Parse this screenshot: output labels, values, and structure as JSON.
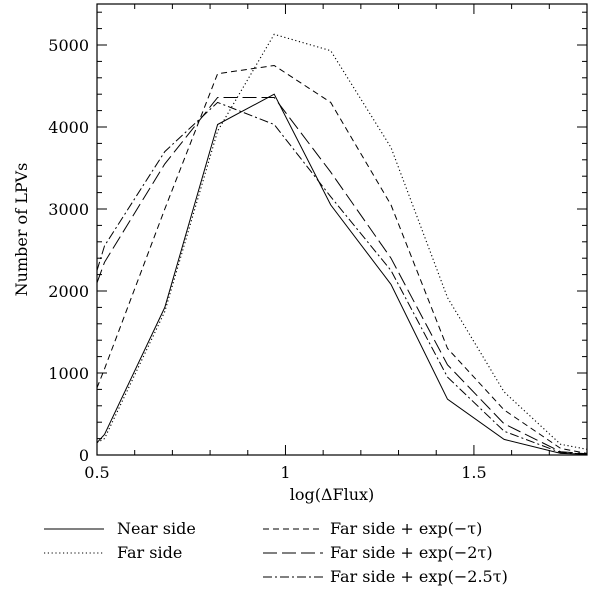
{
  "chart_data": {
    "type": "line",
    "xlabel": "log(ΔFlux)",
    "ylabel": "Number of LPVs",
    "xlim": [
      0.5,
      1.8
    ],
    "ylim": [
      0,
      5500
    ],
    "x_ticks": [
      0.5,
      1,
      1.5
    ],
    "y_ticks": [
      0,
      1000,
      2000,
      3000,
      4000,
      5000
    ],
    "x_tick_labels": [
      "0.5",
      "1",
      "1.5"
    ],
    "y_tick_labels": [
      "0",
      "1000",
      "2000",
      "3000",
      "4000",
      "5000"
    ],
    "grid": false,
    "legend_placement": "bottom (below plot, two columns)",
    "series": [
      {
        "name": "Near side",
        "style": "solid",
        "x": [
          0.5,
          0.52,
          0.68,
          0.82,
          0.97,
          1.12,
          1.28,
          1.43,
          1.58,
          1.73,
          1.8
        ],
        "y": [
          150,
          250,
          1800,
          4030,
          4400,
          3050,
          2080,
          680,
          190,
          20,
          10
        ]
      },
      {
        "name": "Far side",
        "style": "dotted",
        "x": [
          0.5,
          0.52,
          0.68,
          0.82,
          0.97,
          1.12,
          1.28,
          1.43,
          1.58,
          1.73,
          1.8
        ],
        "y": [
          150,
          200,
          1750,
          3950,
          5130,
          4930,
          3750,
          1920,
          770,
          130,
          70
        ]
      },
      {
        "name": "Far side + exp(−τ)",
        "style": "short-dash",
        "x": [
          0.5,
          0.52,
          0.68,
          0.82,
          0.97,
          1.12,
          1.28,
          1.43,
          1.58,
          1.73,
          1.8
        ],
        "y": [
          820,
          1050,
          3000,
          4650,
          4750,
          4300,
          3050,
          1300,
          550,
          80,
          20
        ]
      },
      {
        "name": "Far side + exp(−2τ)",
        "style": "long-dash",
        "x": [
          0.5,
          0.52,
          0.68,
          0.82,
          0.97,
          1.12,
          1.28,
          1.43,
          1.58,
          1.73,
          1.8
        ],
        "y": [
          2100,
          2350,
          3550,
          4360,
          4360,
          3450,
          2400,
          1100,
          380,
          40,
          15
        ]
      },
      {
        "name": "Far side + exp(−2.5τ)",
        "style": "dash-dot",
        "x": [
          0.5,
          0.52,
          0.68,
          0.82,
          0.97,
          1.12,
          1.28,
          1.43,
          1.58,
          1.73,
          1.8
        ],
        "y": [
          2250,
          2550,
          3700,
          4300,
          4030,
          3150,
          2250,
          950,
          290,
          30,
          10
        ]
      }
    ],
    "legend": [
      {
        "label": "Near side",
        "style": "solid"
      },
      {
        "label": "Far side",
        "style": "dotted"
      },
      {
        "label": "Far side + exp(−τ)",
        "style": "short-dash"
      },
      {
        "label": "Far side + exp(−2τ)",
        "style": "long-dash"
      },
      {
        "label": "Far side + exp(−2.5τ)",
        "style": "dash-dot"
      }
    ]
  }
}
